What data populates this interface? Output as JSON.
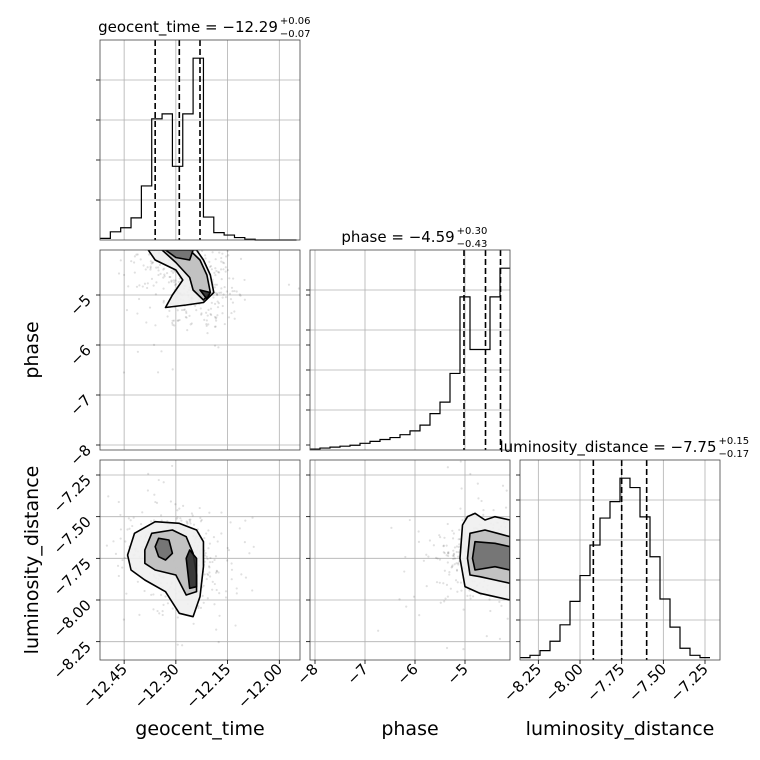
{
  "chart_data": {
    "type": "corner",
    "parameters": [
      "geocent_time",
      "phase",
      "luminosity_distance"
    ],
    "ranges": {
      "geocent_time": [
        -12.52,
        -11.94
      ],
      "phase": [
        -8.1,
        -4.1
      ],
      "luminosity_distance": [
        -8.36,
        -7.16
      ]
    },
    "ticks": {
      "geocent_time": [
        "−12.45",
        "−12.30",
        "−12.15",
        "−12.00"
      ],
      "phase": [
        "−8",
        "−7",
        "−6",
        "−5"
      ],
      "luminosity_distance": [
        "−8.25",
        "−8.00",
        "−7.75",
        "−7.50",
        "−7.25"
      ]
    },
    "tick_values": {
      "geocent_time": [
        -12.45,
        -12.3,
        -12.15,
        -12.0
      ],
      "phase": [
        -8,
        -7,
        -6,
        -5
      ],
      "luminosity_distance": [
        -8.25,
        -8.0,
        -7.75,
        -7.5,
        -7.25
      ]
    },
    "titles": {
      "geocent_time": {
        "label": "geocent_time = −12.29",
        "plus": "+0.06",
        "minus": "−0.07"
      },
      "phase": {
        "label": "phase = −4.59",
        "plus": "+0.30",
        "minus": "−0.43"
      },
      "luminosity_distance": {
        "label": "luminosity_distance = −7.75",
        "plus": "+0.15",
        "minus": "−0.17"
      }
    },
    "quantiles": {
      "geocent_time": [
        -12.36,
        -12.29,
        -12.23
      ],
      "phase": [
        -5.02,
        -4.59,
        -4.29
      ],
      "luminosity_distance": [
        -7.92,
        -7.75,
        -7.6
      ]
    },
    "histograms": {
      "geocent_time": {
        "edges": [
          -12.52,
          -12.49,
          -12.46,
          -12.43,
          -12.4,
          -12.37,
          -12.34,
          -12.31,
          -12.28,
          -12.25,
          -12.22,
          -12.19,
          -12.16,
          -12.13,
          -12.1,
          -12.07,
          -12.04,
          -12.01,
          -11.98,
          -11.95
        ],
        "counts": [
          2,
          10,
          15,
          27,
          66,
          148,
          154,
          90,
          154,
          222,
          28,
          9,
          6,
          3,
          1,
          0,
          0,
          0,
          0
        ]
      },
      "phase": {
        "edges": [
          -8.1,
          -7.9,
          -7.7,
          -7.5,
          -7.3,
          -7.1,
          -6.9,
          -6.7,
          -6.5,
          -6.3,
          -6.1,
          -5.9,
          -5.7,
          -5.5,
          -5.3,
          -5.1,
          -4.9,
          -4.7,
          -4.5,
          -4.3,
          -4.1
        ],
        "counts": [
          1,
          2,
          3,
          4,
          5,
          7,
          9,
          11,
          13,
          16,
          20,
          26,
          38,
          50,
          80,
          160,
          105,
          105,
          160,
          190
        ]
      },
      "luminosity_distance": {
        "edges": [
          -8.36,
          -8.3,
          -8.24,
          -8.18,
          -8.12,
          -8.06,
          -8.0,
          -7.94,
          -7.88,
          -7.82,
          -7.76,
          -7.7,
          -7.64,
          -7.58,
          -7.52,
          -7.46,
          -7.4,
          -7.34,
          -7.28,
          -7.22
        ],
        "counts": [
          2,
          4,
          8,
          16,
          30,
          50,
          72,
          98,
          121,
          135,
          155,
          147,
          122,
          88,
          52,
          28,
          10,
          4,
          2
        ]
      }
    },
    "pairs": [
      {
        "x": "geocent_time",
        "y": "phase",
        "contours": [
          [
            [
              -12.38,
              -4.1
            ],
            [
              -12.36,
              -4.3
            ],
            [
              -12.3,
              -4.5
            ],
            [
              -12.28,
              -4.7
            ],
            [
              -12.31,
              -5.0
            ],
            [
              -12.33,
              -5.25
            ],
            [
              -12.27,
              -5.2
            ],
            [
              -12.22,
              -5.15
            ],
            [
              -12.19,
              -4.95
            ],
            [
              -12.2,
              -4.6
            ],
            [
              -12.22,
              -4.3
            ],
            [
              -12.24,
              -4.1
            ]
          ],
          [
            [
              -12.34,
              -4.1
            ],
            [
              -12.3,
              -4.35
            ],
            [
              -12.26,
              -4.65
            ],
            [
              -12.25,
              -4.9
            ],
            [
              -12.22,
              -5.1
            ],
            [
              -12.2,
              -4.95
            ],
            [
              -12.21,
              -4.6
            ],
            [
              -12.23,
              -4.3
            ],
            [
              -12.26,
              -4.1
            ]
          ],
          [
            [
              -12.33,
              -4.1
            ],
            [
              -12.3,
              -4.25
            ],
            [
              -12.26,
              -4.3
            ],
            [
              -12.25,
              -4.1
            ]
          ],
          [
            [
              -12.23,
              -4.9
            ],
            [
              -12.21,
              -5.08
            ],
            [
              -12.2,
              -4.95
            ]
          ]
        ],
        "centers": [
          [
            -12.31,
            -4.18
          ],
          [
            -12.225,
            -5.0
          ],
          [
            -12.26,
            -4.6
          ]
        ]
      },
      {
        "x": "geocent_time",
        "y": "luminosity_distance",
        "contours": [
          [
            [
              -12.44,
              -7.73
            ],
            [
              -12.42,
              -7.6
            ],
            [
              -12.36,
              -7.53
            ],
            [
              -12.29,
              -7.54
            ],
            [
              -12.24,
              -7.58
            ],
            [
              -12.22,
              -7.65
            ],
            [
              -12.22,
              -7.8
            ],
            [
              -12.23,
              -7.98
            ],
            [
              -12.25,
              -8.1
            ],
            [
              -12.29,
              -8.08
            ],
            [
              -12.33,
              -7.95
            ],
            [
              -12.39,
              -7.88
            ],
            [
              -12.43,
              -7.82
            ]
          ],
          [
            [
              -12.39,
              -7.7
            ],
            [
              -12.37,
              -7.6
            ],
            [
              -12.31,
              -7.58
            ],
            [
              -12.27,
              -7.62
            ],
            [
              -12.25,
              -7.72
            ],
            [
              -12.24,
              -7.85
            ],
            [
              -12.24,
              -7.95
            ],
            [
              -12.27,
              -7.97
            ],
            [
              -12.3,
              -7.85
            ],
            [
              -12.36,
              -7.82
            ],
            [
              -12.39,
              -7.78
            ]
          ],
          [
            [
              -12.36,
              -7.68
            ],
            [
              -12.35,
              -7.63
            ],
            [
              -12.32,
              -7.64
            ],
            [
              -12.31,
              -7.72
            ],
            [
              -12.33,
              -7.76
            ],
            [
              -12.35,
              -7.74
            ]
          ],
          [
            [
              -12.27,
              -7.75
            ],
            [
              -12.26,
              -7.7
            ],
            [
              -12.24,
              -7.75
            ],
            [
              -12.24,
              -7.92
            ],
            [
              -12.26,
              -7.93
            ]
          ]
        ],
        "centers": [
          [
            -12.335,
            -7.7
          ],
          [
            -12.255,
            -7.85
          ],
          [
            -12.3,
            -7.68
          ]
        ]
      },
      {
        "x": "phase",
        "y": "luminosity_distance",
        "contours": [
          [
            [
              -5.1,
              -7.75
            ],
            [
              -5.05,
              -7.55
            ],
            [
              -4.95,
              -7.5
            ],
            [
              -4.8,
              -7.48
            ],
            [
              -4.6,
              -7.52
            ],
            [
              -4.4,
              -7.5
            ],
            [
              -4.1,
              -7.52
            ],
            [
              -4.1,
              -8.0
            ],
            [
              -4.4,
              -7.98
            ],
            [
              -4.7,
              -7.96
            ],
            [
              -5.0,
              -7.92
            ]
          ],
          [
            [
              -4.95,
              -7.75
            ],
            [
              -4.9,
              -7.6
            ],
            [
              -4.6,
              -7.58
            ],
            [
              -4.35,
              -7.6
            ],
            [
              -4.1,
              -7.62
            ],
            [
              -4.1,
              -7.9
            ],
            [
              -4.4,
              -7.88
            ],
            [
              -4.7,
              -7.86
            ],
            [
              -4.9,
              -7.85
            ]
          ],
          [
            [
              -4.85,
              -7.75
            ],
            [
              -4.8,
              -7.65
            ],
            [
              -4.4,
              -7.66
            ],
            [
              -4.1,
              -7.68
            ],
            [
              -4.1,
              -7.82
            ],
            [
              -4.4,
              -7.8
            ],
            [
              -4.8,
              -7.82
            ]
          ]
        ],
        "centers": [
          [
            -4.25,
            -7.72
          ],
          [
            -4.6,
            -7.72
          ],
          [
            -4.85,
            -7.75
          ]
        ]
      }
    ]
  }
}
